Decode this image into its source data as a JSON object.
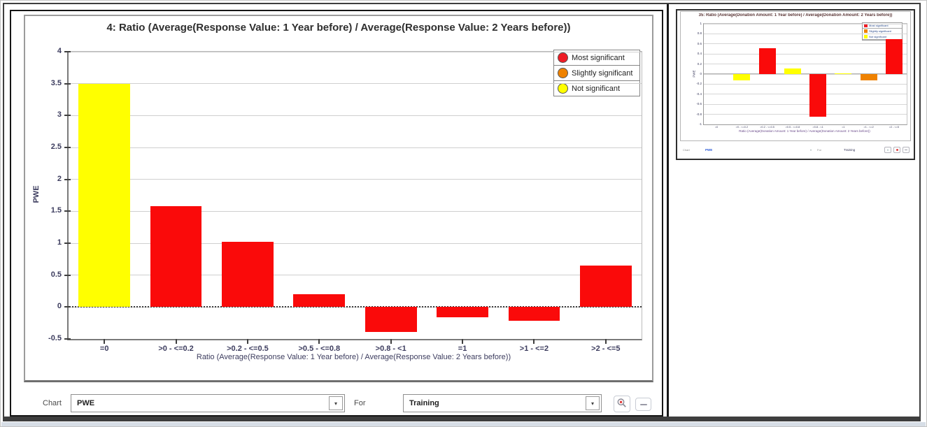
{
  "legend": {
    "items": [
      {
        "label": "Most significant",
        "color": "#ee1c25"
      },
      {
        "label": "Slightly significant",
        "color": "#ef8200"
      },
      {
        "label": "Not significant",
        "color": "#ffff00"
      }
    ]
  },
  "controls": {
    "chart_label": "Chart",
    "chart_value": "PWE",
    "for_label": "For",
    "for_value": "Training",
    "zoom_icon": "magnifier-icon",
    "more_icon": "dash-icon"
  },
  "thumb_controls": {
    "chart_label": "Chart",
    "chart_value": "PWE",
    "for_label": "For",
    "for_value": "Training"
  },
  "chart_data": [
    {
      "type": "bar",
      "title": "4: Ratio (Average(Response Value: 1 Year before) / Average(Response Value: 2 Years before))",
      "xlabel": "Ratio (Average(Response Value: 1 Year before) / Average(Response Value: 2 Years before))",
      "ylabel": "PWE",
      "categories": [
        "=0",
        ">0 - <=0.2",
        ">0.2 - <=0.5",
        ">0.5 - <=0.8",
        ">0.8 - <1",
        "=1",
        ">1 - <=2",
        ">2 - <=5"
      ],
      "values": [
        3.5,
        1.58,
        1.02,
        0.2,
        -0.39,
        -0.16,
        -0.22,
        0.65
      ],
      "significance": [
        "Not significant",
        "Most significant",
        "Most significant",
        "Most significant",
        "Most significant",
        "Most significant",
        "Most significant",
        "Most significant"
      ],
      "bar_colors": [
        "#ffff00",
        "#fa0a0a",
        "#fa0a0a",
        "#fa0a0a",
        "#fa0a0a",
        "#fa0a0a",
        "#fa0a0a",
        "#fa0a0a"
      ],
      "ylim": [
        -0.5,
        4
      ],
      "ytick_step": 0.5,
      "grid": true,
      "zero_line": "dashed",
      "legend_position": "top-right"
    },
    {
      "type": "bar",
      "title": "35: Ratio (Average(Donation Amount: 1 Year before) / Average(Donation Amount: 2 Years before))",
      "xlabel": "Ratio (Average(Donation Amount: 1 Year before) / Average(Donation Amount: 2 Years before))",
      "ylabel": "PWE",
      "categories": [
        "=0",
        ">0 - <=0.2",
        ">0.2 - <=0.5",
        ">0.5 - <=0.8",
        ">0.8 - <1",
        "=1",
        ">1 - <=2",
        ">2 - <=5"
      ],
      "values": [
        0,
        -0.12,
        0.52,
        0.11,
        -0.85,
        0.02,
        -0.12,
        0.7
      ],
      "significance": [
        "Not significant",
        "Not significant",
        "Most significant",
        "Not significant",
        "Most significant",
        "Not significant",
        "Slightly significant",
        "Most significant"
      ],
      "bar_colors": [
        "#ffff00",
        "#ffff00",
        "#fa0a0a",
        "#ffff00",
        "#fa0a0a",
        "#ffff00",
        "#ef8200",
        "#fa0a0a"
      ],
      "ylim": [
        -1,
        1
      ],
      "ytick_step": 0.2,
      "grid": true,
      "zero_line": "solid",
      "legend_position": "top-right"
    }
  ]
}
